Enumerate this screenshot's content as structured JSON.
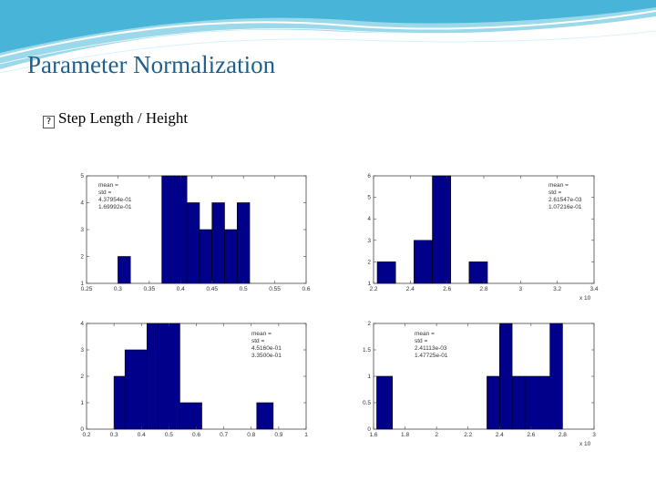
{
  "slide": {
    "title": "Parameter Normalization",
    "bullet_glyph": "?",
    "bullet_text": "Step Length / Height",
    "accent_color": "#1f5f8b",
    "banner_colors": [
      "#8fd3e8",
      "#2aa6cf",
      "#ffffff"
    ]
  },
  "chart_data": [
    {
      "type": "bar",
      "bar_color": "#00008b",
      "x_bins": [
        [
          0.3,
          0.32
        ],
        [
          0.32,
          0.34
        ],
        [
          0.37,
          0.39
        ],
        [
          0.39,
          0.41
        ],
        [
          0.41,
          0.43
        ],
        [
          0.43,
          0.45
        ],
        [
          0.45,
          0.47
        ],
        [
          0.47,
          0.49
        ],
        [
          0.49,
          0.51
        ],
        [
          0.51,
          0.53
        ]
      ],
      "values": [
        2,
        1,
        5,
        5,
        4,
        3,
        4,
        3,
        4,
        0
      ],
      "xlim": [
        0.25,
        0.6
      ],
      "ylim": [
        1,
        5
      ],
      "x_ticks": [
        "0.25",
        "0.3",
        "0.35",
        "0.4",
        "0.45",
        "0.5",
        "0.55",
        "0.6"
      ],
      "y_ticks": [
        "5",
        "4",
        "3",
        "2",
        "1"
      ],
      "x_multiplier": "",
      "stats": [
        "mean =",
        "std =",
        "4.37954e-01",
        "1.69992e-01"
      ]
    },
    {
      "type": "bar",
      "bar_color": "#00008b",
      "x_bins": [
        [
          2.22,
          2.32
        ],
        [
          2.42,
          2.52
        ],
        [
          2.52,
          2.62
        ],
        [
          2.72,
          2.82
        ],
        [
          3.05,
          3.15
        ],
        [
          3.15,
          3.25
        ]
      ],
      "values": [
        2,
        3,
        6,
        2,
        1,
        1
      ],
      "xlim": [
        2.2,
        3.4
      ],
      "ylim": [
        1,
        6
      ],
      "x_ticks": [
        "2.2",
        "2.4",
        "2.6",
        "2.8",
        "3",
        "3.2",
        "3.4"
      ],
      "y_ticks": [
        "6",
        "5",
        "4",
        "3",
        "2",
        "1"
      ],
      "x_multiplier": "x 10",
      "stats": [
        "mean =",
        "std =",
        "2.61547e-03",
        "1.07216e-01"
      ]
    },
    {
      "type": "bar",
      "bar_color": "#00008b",
      "x_bins": [
        [
          0.3,
          0.34
        ],
        [
          0.34,
          0.42
        ],
        [
          0.42,
          0.46
        ],
        [
          0.46,
          0.54
        ],
        [
          0.54,
          0.62
        ],
        [
          0.82,
          0.88
        ]
      ],
      "values": [
        2,
        3,
        4,
        4,
        1,
        1
      ],
      "xlim": [
        0.2,
        1
      ],
      "ylim": [
        0,
        4
      ],
      "x_ticks": [
        "0.2",
        "0.3",
        "0.4",
        "0.5",
        "0.6",
        "0.7",
        "0.8",
        "0.9",
        "1"
      ],
      "y_ticks": [
        "4",
        "3",
        "2",
        "1",
        "0"
      ],
      "x_multiplier": "",
      "stats": [
        "mean =",
        "std =",
        "4.5160e-01",
        "3.3500e-01"
      ]
    },
    {
      "type": "bar",
      "bar_color": "#00008b",
      "x_bins": [
        [
          1.62,
          1.72
        ],
        [
          2.32,
          2.4
        ],
        [
          2.4,
          2.48
        ],
        [
          2.48,
          2.56
        ],
        [
          2.56,
          2.72
        ],
        [
          2.72,
          2.8
        ]
      ],
      "values": [
        1,
        1,
        2,
        1,
        1,
        2
      ],
      "xlim": [
        1.6,
        3
      ],
      "ylim": [
        0,
        2
      ],
      "x_ticks": [
        "1.6",
        "1.8",
        "2",
        "2.2",
        "2.4",
        "2.6",
        "2.8",
        "3"
      ],
      "y_ticks": [
        "2",
        "1.5",
        "1",
        "0.5",
        "0"
      ],
      "x_multiplier": "x 10",
      "stats": [
        "mean =",
        "std =",
        "2.41113e-03",
        "1.47725e-01"
      ]
    }
  ]
}
